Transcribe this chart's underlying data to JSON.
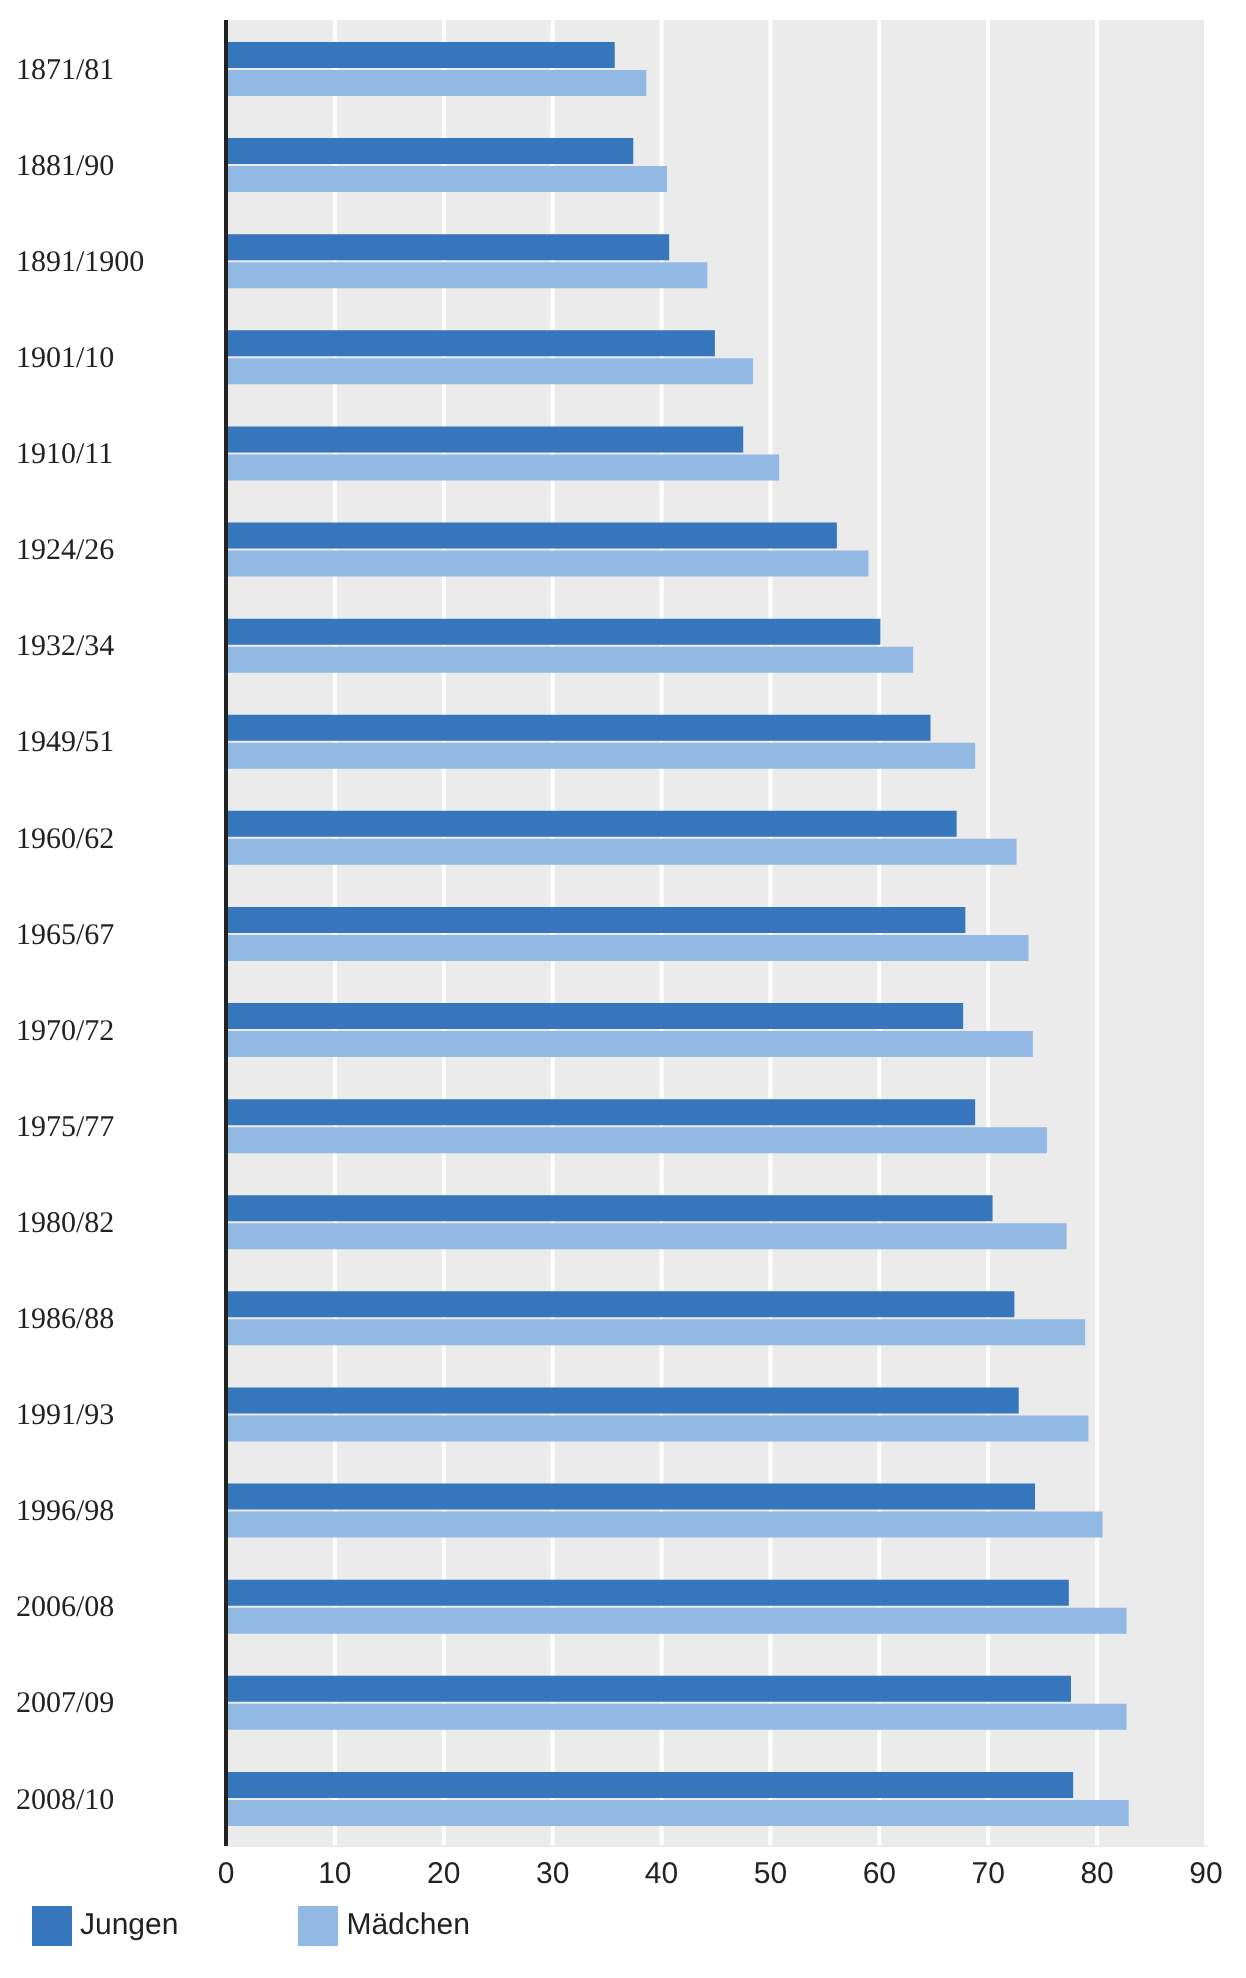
{
  "chart_data": {
    "type": "bar",
    "orientation": "horizontal",
    "categories": [
      "1871/81",
      "1881/90",
      "1891/1900",
      "1901/10",
      "1910/11",
      "1924/26",
      "1932/34",
      "1949/51",
      "1960/62",
      "1965/67",
      "1970/72",
      "1975/77",
      "1980/82",
      "1986/88",
      "1991/93",
      "1996/98",
      "2006/08",
      "2007/09",
      "2008/10"
    ],
    "series": [
      {
        "name": "Jungen",
        "color": "#3576bd",
        "values": [
          35.7,
          37.4,
          40.7,
          44.9,
          47.5,
          56.1,
          60.1,
          64.7,
          67.1,
          67.9,
          67.7,
          68.8,
          70.4,
          72.4,
          72.8,
          74.3,
          77.4,
          77.6,
          77.8
        ]
      },
      {
        "name": "Mädchen",
        "color": "#91b9e3",
        "values": [
          38.6,
          40.5,
          44.2,
          48.4,
          50.8,
          59.0,
          63.1,
          68.8,
          72.6,
          73.7,
          74.1,
          75.4,
          77.2,
          78.9,
          79.2,
          80.5,
          82.7,
          82.7,
          82.9
        ]
      }
    ],
    "xlim": [
      0,
      90
    ],
    "xticks": [
      0,
      10,
      20,
      30,
      40,
      50,
      60,
      70,
      80,
      90
    ],
    "grid": "x",
    "legend": "bottom left"
  }
}
